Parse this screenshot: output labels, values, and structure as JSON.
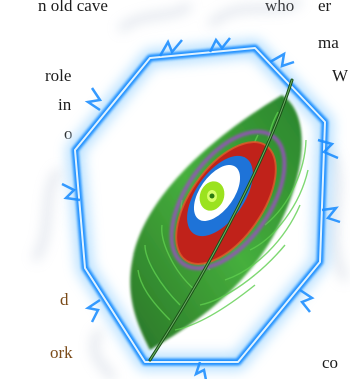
{
  "page": {
    "background": "#ffffff",
    "text_fragments": [
      "n old cave",
      "role",
      "in",
      "o",
      "d",
      "ork",
      "who",
      "er",
      "ma",
      "W",
      "co"
    ]
  },
  "artwork": {
    "subject": "feather-icon",
    "ring": "flame-ring-icon",
    "colors": {
      "ring_blue": "#1f8fff",
      "ring_glow": "#9fd6ff",
      "feather_green": "#2f9a2a",
      "eye_red": "#c0221a",
      "eye_blue": "#1e73d8",
      "eye_lime": "#9be21f",
      "eye_purple": "#9a4fc0",
      "smoke": "#b9c4d6"
    }
  }
}
